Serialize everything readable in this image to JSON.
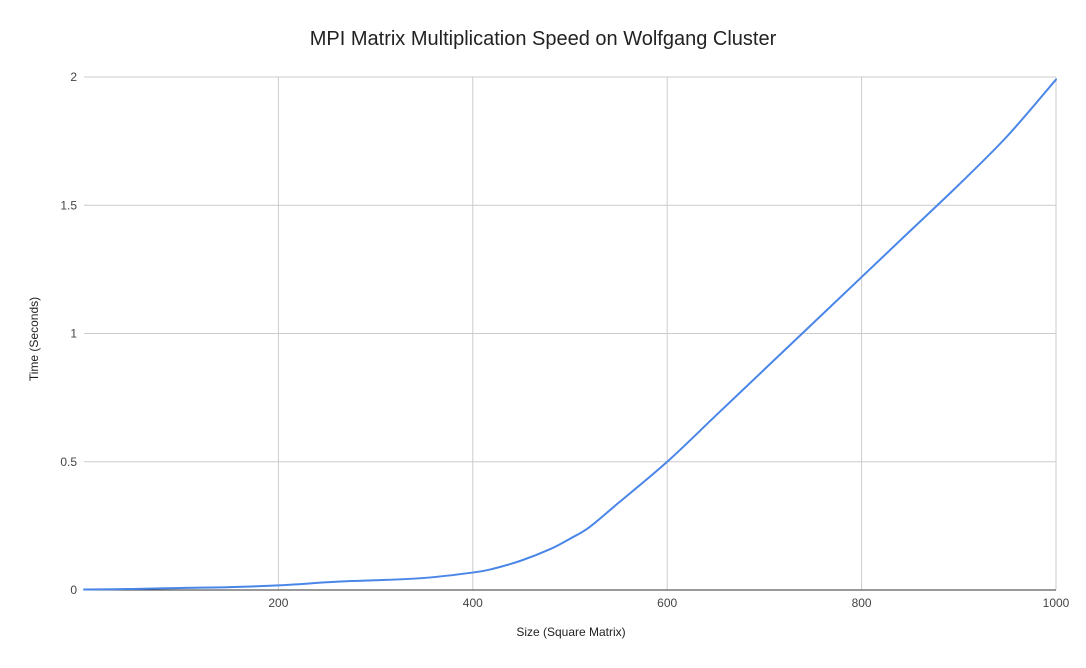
{
  "chart_data": {
    "type": "line",
    "title": "MPI Matrix Multiplication Speed on Wolfgang Cluster",
    "xlabel": "Size (Square Matrix)",
    "ylabel": "Time (Seconds)",
    "xlim": [
      0,
      1000
    ],
    "ylim": [
      0,
      2
    ],
    "x_ticks": [
      200,
      400,
      600,
      800,
      1000
    ],
    "x_tick_labels": [
      "200",
      "400",
      "600",
      "800",
      "1000"
    ],
    "y_ticks": [
      0,
      0.5,
      1,
      1.5,
      2
    ],
    "y_tick_labels": [
      "0",
      "0.5",
      "1",
      "1.5",
      "2"
    ],
    "grid": true,
    "legend": "none",
    "color": "#4a86e8",
    "series": [
      {
        "x": [
          0,
          50,
          100,
          150,
          200,
          250,
          275,
          300,
          350,
          400,
          420,
          450,
          480,
          500,
          520,
          550,
          600,
          650,
          700,
          750,
          800,
          850,
          900,
          950,
          1000
        ],
        "y": [
          0.002,
          0.004,
          0.008,
          0.011,
          0.018,
          0.03,
          0.035,
          0.038,
          0.047,
          0.068,
          0.082,
          0.115,
          0.16,
          0.2,
          0.245,
          0.34,
          0.5,
          0.68,
          0.86,
          1.04,
          1.22,
          1.4,
          1.58,
          1.77,
          1.99
        ]
      }
    ]
  }
}
